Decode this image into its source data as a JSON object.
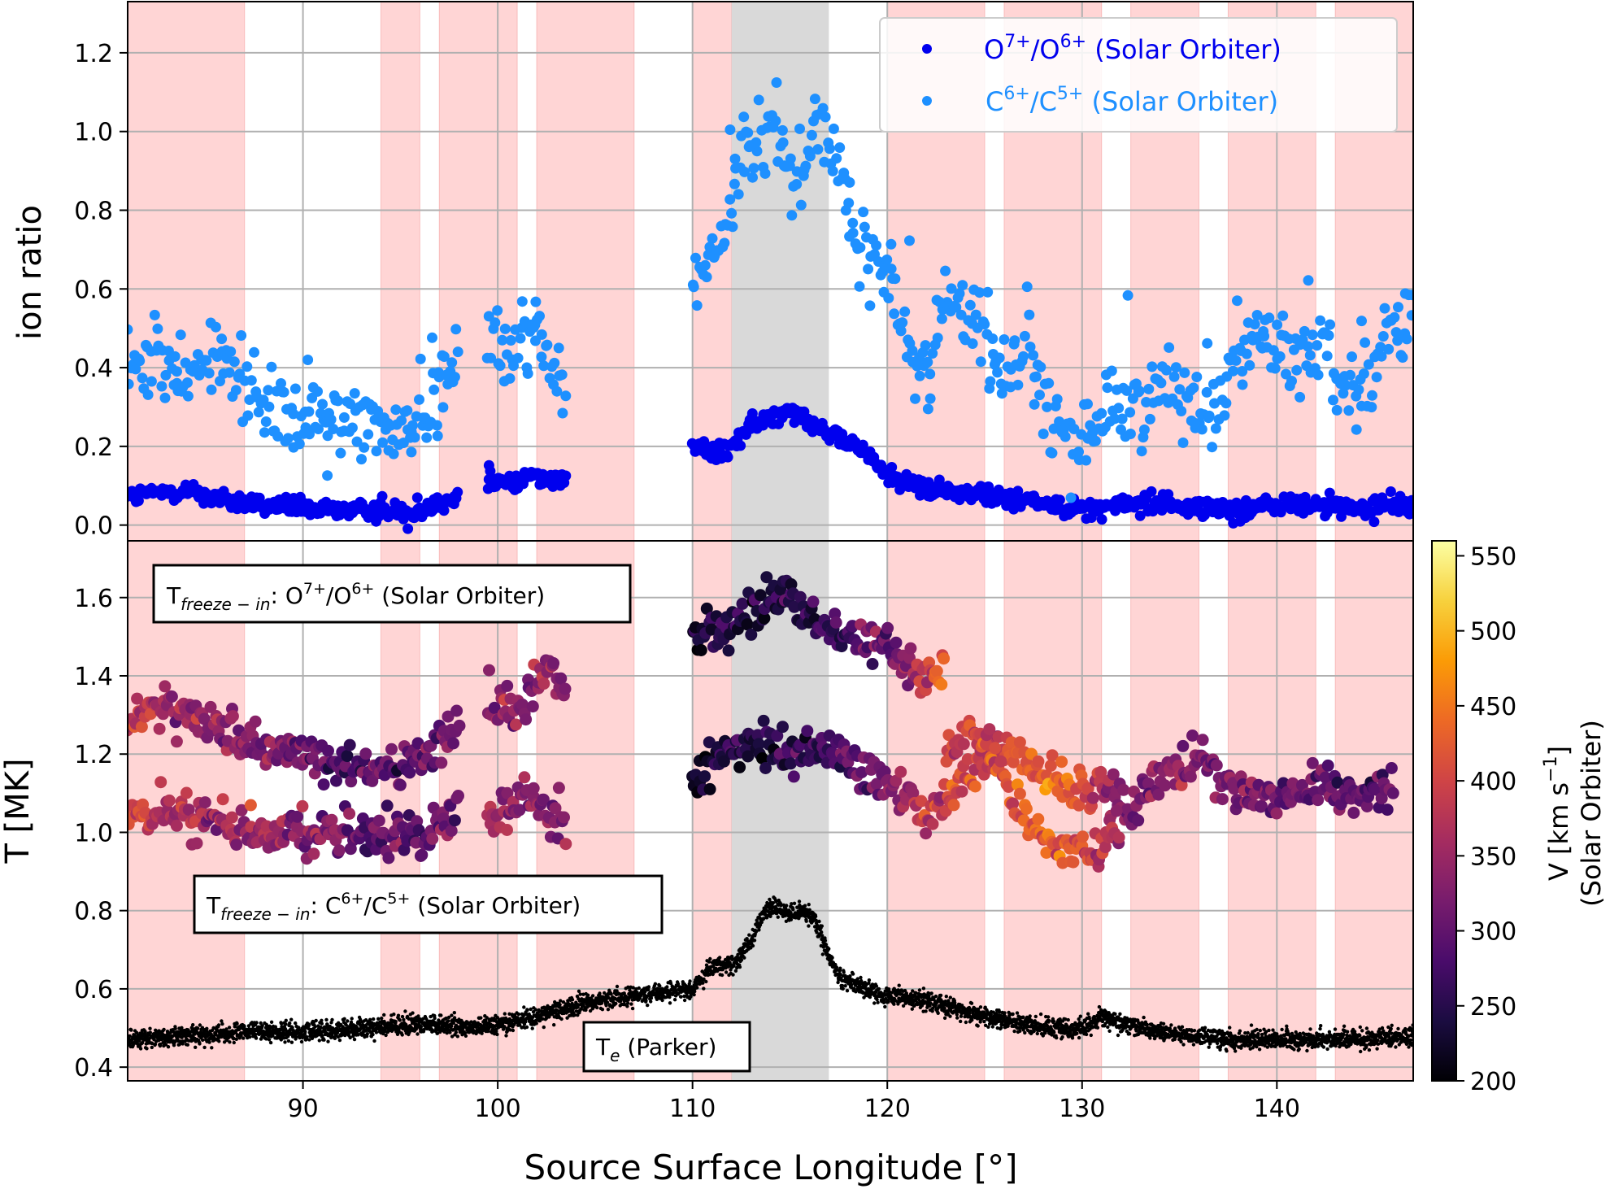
{
  "chart_data": [
    {
      "type": "scatter",
      "panel": "top",
      "xlabel": "Source Surface Longitude [°]",
      "ylabel": "ion ratio",
      "xlim": [
        81,
        147
      ],
      "ylim": [
        -0.04,
        1.33
      ],
      "xticks": [
        90,
        100,
        110,
        120,
        130,
        140
      ],
      "yticks": [
        0.0,
        0.2,
        0.4,
        0.6,
        0.8,
        1.0,
        1.2
      ],
      "ytick_labels": [
        "0.0",
        "0.2",
        "0.4",
        "0.6",
        "0.8",
        "1.0",
        "1.2"
      ],
      "grid": true,
      "legend_position": "top-right",
      "legend": [
        {
          "base": "O",
          "sup1": "7+",
          "mid": "/O",
          "sup2": "6+",
          "tail": " (Solar Orbiter)",
          "color": "#0000ee"
        },
        {
          "base": "C",
          "sup1": "6+",
          "mid": "/C",
          "sup2": "5+",
          "tail": " (Solar Orbiter)",
          "color": "#1e90ff"
        }
      ],
      "series": [
        {
          "color": "#0000ee",
          "segments": [
            {
              "x": [
                81,
                84,
                86,
                88,
                90,
                92,
                94,
                96,
                98
              ],
              "y": [
                0.07,
                0.09,
                0.06,
                0.05,
                0.04,
                0.04,
                0.035,
                0.04,
                0.07
              ]
            },
            {
              "x": [
                99.5,
                101,
                102,
                103.5
              ],
              "y": [
                0.11,
                0.11,
                0.13,
                0.11
              ]
            },
            {
              "x": [
                110,
                111.5,
                113,
                115,
                117,
                118.5,
                120,
                122,
                124,
                126,
                128,
                130,
                132,
                134,
                136,
                138,
                140,
                142,
                144,
                147
              ],
              "y": [
                0.2,
                0.18,
                0.25,
                0.3,
                0.23,
                0.2,
                0.13,
                0.09,
                0.08,
                0.07,
                0.06,
                0.04,
                0.05,
                0.06,
                0.04,
                0.04,
                0.05,
                0.05,
                0.04,
                0.06
              ]
            }
          ]
        },
        {
          "color": "#1e90ff",
          "segments": [
            {
              "x": [
                81,
                82.5,
                84,
                86,
                87.5,
                89,
                91,
                93,
                95,
                96.5,
                98
              ],
              "y": [
                0.4,
                0.42,
                0.4,
                0.42,
                0.32,
                0.27,
                0.26,
                0.28,
                0.24,
                0.3,
                0.45
              ]
            },
            {
              "x": [
                99.5,
                100.5,
                101.5,
                102.5,
                103.5
              ],
              "y": [
                0.5,
                0.4,
                0.52,
                0.45,
                0.32
              ]
            },
            {
              "x": [
                110,
                110.8,
                111.7,
                112.5,
                113.5,
                114.3,
                115.2,
                116.3,
                117.2,
                118.2,
                119.2,
                120.2,
                121.2,
                122.2,
                123.2,
                124.2,
                125.2,
                126.3,
                127.3,
                128.3,
                129.3,
                130.3,
                131.3,
                132.3,
                133.5,
                135,
                136.5,
                138,
                139.5,
                141,
                142.5,
                144,
                145.5,
                147
              ],
              "y": [
                0.6,
                0.66,
                0.75,
                0.92,
                0.97,
                1.06,
                0.86,
                1.02,
                0.98,
                0.73,
                0.68,
                0.62,
                0.4,
                0.44,
                0.61,
                0.52,
                0.45,
                0.38,
                0.48,
                0.24,
                0.21,
                0.22,
                0.33,
                0.28,
                0.34,
                0.36,
                0.27,
                0.46,
                0.47,
                0.42,
                0.46,
                0.33,
                0.47,
                0.55
              ]
            }
          ]
        }
      ]
    },
    {
      "type": "scatter",
      "panel": "bottom",
      "xlabel": "Source Surface Longitude [°]",
      "ylabel": "T [MK]",
      "xlim": [
        81,
        147
      ],
      "ylim": [
        0.365,
        1.745
      ],
      "xticks": [
        90,
        100,
        110,
        120,
        130,
        140
      ],
      "xtick_labels": [
        "90",
        "100",
        "110",
        "120",
        "130",
        "140"
      ],
      "yticks": [
        0.4,
        0.6,
        0.8,
        1.0,
        1.2,
        1.4,
        1.6
      ],
      "ytick_labels": [
        "0.4",
        "0.6",
        "0.8",
        "1.0",
        "1.2",
        "1.4",
        "1.6"
      ],
      "grid": true,
      "annotations": [
        {
          "pre": "T",
          "sub": "freeze − in",
          "mid": ": O",
          "sup1": "7+",
          "mid2": "/O",
          "sup2": "6+",
          "tail": " (Solar Orbiter)"
        },
        {
          "pre": "T",
          "sub": "freeze − in",
          "mid": ": C",
          "sup1": "6+",
          "mid2": "/C",
          "sup2": "5+",
          "tail": " (Solar Orbiter)"
        },
        {
          "pre": "T",
          "sub": "e",
          "mid": " (Parker)"
        }
      ],
      "series": [
        {
          "color_by": "speed",
          "segments": [
            {
              "x": [
                81,
                83,
                85,
                87,
                89,
                91,
                93,
                95,
                97,
                98
              ],
              "y": [
                1.28,
                1.33,
                1.27,
                1.24,
                1.2,
                1.18,
                1.17,
                1.16,
                1.22,
                1.3
              ],
              "v": [
                380,
                360,
                340,
                330,
                320,
                300,
                290,
                290,
                310,
                330
              ]
            },
            {
              "x": [
                99.5,
                101,
                102.5,
                103.5
              ],
              "y": [
                1.35,
                1.3,
                1.4,
                1.36
              ],
              "v": [
                350,
                330,
                340,
                330
              ]
            },
            {
              "x": [
                110,
                111.5,
                113,
                114.5,
                116,
                117.5,
                119,
                120.5,
                122,
                123
              ],
              "y": [
                1.5,
                1.52,
                1.56,
                1.59,
                1.55,
                1.5,
                1.48,
                1.45,
                1.38,
                1.42
              ],
              "v": [
                240,
                260,
                240,
                240,
                260,
                280,
                300,
                320,
                380,
                440
              ]
            }
          ]
        },
        {
          "color_by": "speed",
          "segments": [
            {
              "x": [
                81,
                83,
                85,
                87,
                89,
                91,
                93,
                95,
                97,
                98
              ],
              "y": [
                1.05,
                1.05,
                1.04,
                1.02,
                1.0,
                1.0,
                1.0,
                0.99,
                1.02,
                1.07
              ],
              "v": [
                400,
                370,
                350,
                360,
                340,
                320,
                300,
                300,
                310,
                320
              ]
            },
            {
              "x": [
                99.5,
                101,
                102.5,
                103.5
              ],
              "y": [
                1.05,
                1.08,
                1.07,
                1.03
              ],
              "v": [
                380,
                330,
                330,
                340
              ]
            },
            {
              "x": [
                110,
                111.5,
                113,
                114.5,
                116,
                117.5,
                119,
                120.5,
                122,
                123.5,
                125,
                126.5,
                128,
                129.5,
                131,
                132.5,
                134,
                136,
                138,
                140,
                142,
                144,
                146
              ],
              "y": [
                1.12,
                1.2,
                1.22,
                1.2,
                1.2,
                1.2,
                1.15,
                1.12,
                1.05,
                1.1,
                1.2,
                1.22,
                1.15,
                1.12,
                1.12,
                1.05,
                1.15,
                1.2,
                1.1,
                1.08,
                1.12,
                1.1,
                1.12
              ],
              "v": [
                220,
                240,
                240,
                250,
                260,
                280,
                300,
                330,
                380,
                420,
                380,
                420,
                430,
                440,
                360,
                330,
                340,
                330,
                320,
                310,
                300,
                300,
                300
              ]
            },
            {
              "x": [
                123,
                125,
                127,
                129,
                130.5,
                132
              ],
              "y": [
                1.22,
                1.25,
                1.02,
                0.97,
                0.95,
                1.02
              ],
              "v": [
                380,
                400,
                420,
                440,
                400,
                350
              ]
            }
          ]
        },
        {
          "color": "#000000",
          "x": [
            81,
            84,
            87,
            90,
            93,
            96,
            99,
            102,
            105,
            108,
            110,
            111,
            112,
            113,
            113.7,
            114.3,
            115,
            115.7,
            116.3,
            117,
            117.7,
            118.5,
            120,
            122,
            124,
            126,
            128,
            130,
            131,
            132,
            134,
            136,
            138,
            140,
            142,
            144,
            147
          ],
          "y": [
            0.47,
            0.48,
            0.49,
            0.49,
            0.5,
            0.51,
            0.5,
            0.53,
            0.57,
            0.59,
            0.6,
            0.66,
            0.66,
            0.72,
            0.8,
            0.81,
            0.79,
            0.8,
            0.78,
            0.68,
            0.62,
            0.61,
            0.58,
            0.57,
            0.54,
            0.52,
            0.5,
            0.5,
            0.53,
            0.51,
            0.49,
            0.48,
            0.47,
            0.47,
            0.47,
            0.47,
            0.48
          ]
        }
      ]
    },
    {
      "type": "heatmap",
      "role": "colorbar",
      "label_line1": "V [km s",
      "label_sup": "−1",
      "label_line1_end": "]",
      "label_line2": "(Solar Orbiter)",
      "range": [
        200,
        560
      ],
      "ticks": [
        200,
        250,
        300,
        350,
        400,
        450,
        500,
        550
      ],
      "tick_labels": [
        "200",
        "250",
        "300",
        "350",
        "400",
        "450",
        "500",
        "550"
      ],
      "colormap": "inferno",
      "colormap_stops": [
        "#000004",
        "#1b0c41",
        "#4a0c6b",
        "#781c6d",
        "#a52c60",
        "#cf4446",
        "#ed6925",
        "#fb9b06",
        "#f7d13d",
        "#fcffa4"
      ]
    }
  ],
  "background_bands": {
    "shaded_color": "#ffd5d5",
    "shaded": [
      [
        81,
        87
      ],
      [
        94,
        96
      ],
      [
        97,
        101
      ],
      [
        102,
        107
      ],
      [
        110,
        112
      ],
      [
        120,
        125
      ],
      [
        126,
        131
      ],
      [
        132.5,
        136
      ],
      [
        137.5,
        142
      ],
      [
        143,
        147
      ]
    ],
    "highlight_color": "#d9d9d9",
    "highlight": [
      112,
      117
    ]
  }
}
